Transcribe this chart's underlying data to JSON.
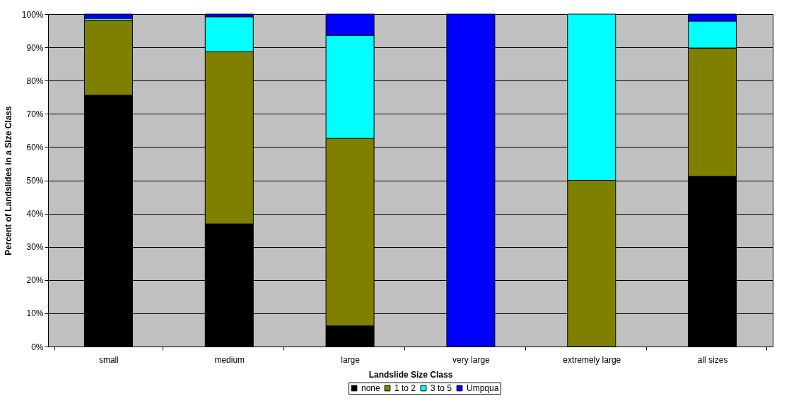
{
  "chart_data": {
    "type": "bar",
    "stacked": true,
    "xlabel": "Landslide Size Class",
    "ylabel": "Percent of Landslides in a Size Class",
    "categories": [
      "small",
      "medium",
      "large",
      "very large",
      "extremely large",
      "all sizes"
    ],
    "series": [
      {
        "name": "none",
        "color": "#000000",
        "values": [
          75.6,
          36.9,
          6.2,
          0,
          0,
          51.2
        ]
      },
      {
        "name": "1 to 2",
        "color": "#808000",
        "values": [
          22.5,
          51.8,
          56.4,
          0,
          50,
          38.6
        ]
      },
      {
        "name": "3 to 5",
        "color": "#00ffff",
        "values": [
          0.6,
          10.5,
          31.0,
          0,
          50,
          8.1
        ]
      },
      {
        "name": "Umpqua",
        "color": "#0000ff",
        "values": [
          1.3,
          0.8,
          6.4,
          100,
          0,
          2.1
        ]
      }
    ],
    "ylim": [
      0,
      100
    ],
    "yticks": [
      {
        "value": 0,
        "label": "0%"
      },
      {
        "value": 10,
        "label": "10%"
      },
      {
        "value": 20,
        "label": "20%"
      },
      {
        "value": 30,
        "label": "30%"
      },
      {
        "value": 40,
        "label": "40%"
      },
      {
        "value": 50,
        "label": "50%"
      },
      {
        "value": 60,
        "label": "60%"
      },
      {
        "value": 70,
        "label": "70%"
      },
      {
        "value": 80,
        "label": "80%"
      },
      {
        "value": 90,
        "label": "90%"
      },
      {
        "value": 100,
        "label": "100%"
      }
    ],
    "grid": "y",
    "legend": "bottom"
  }
}
